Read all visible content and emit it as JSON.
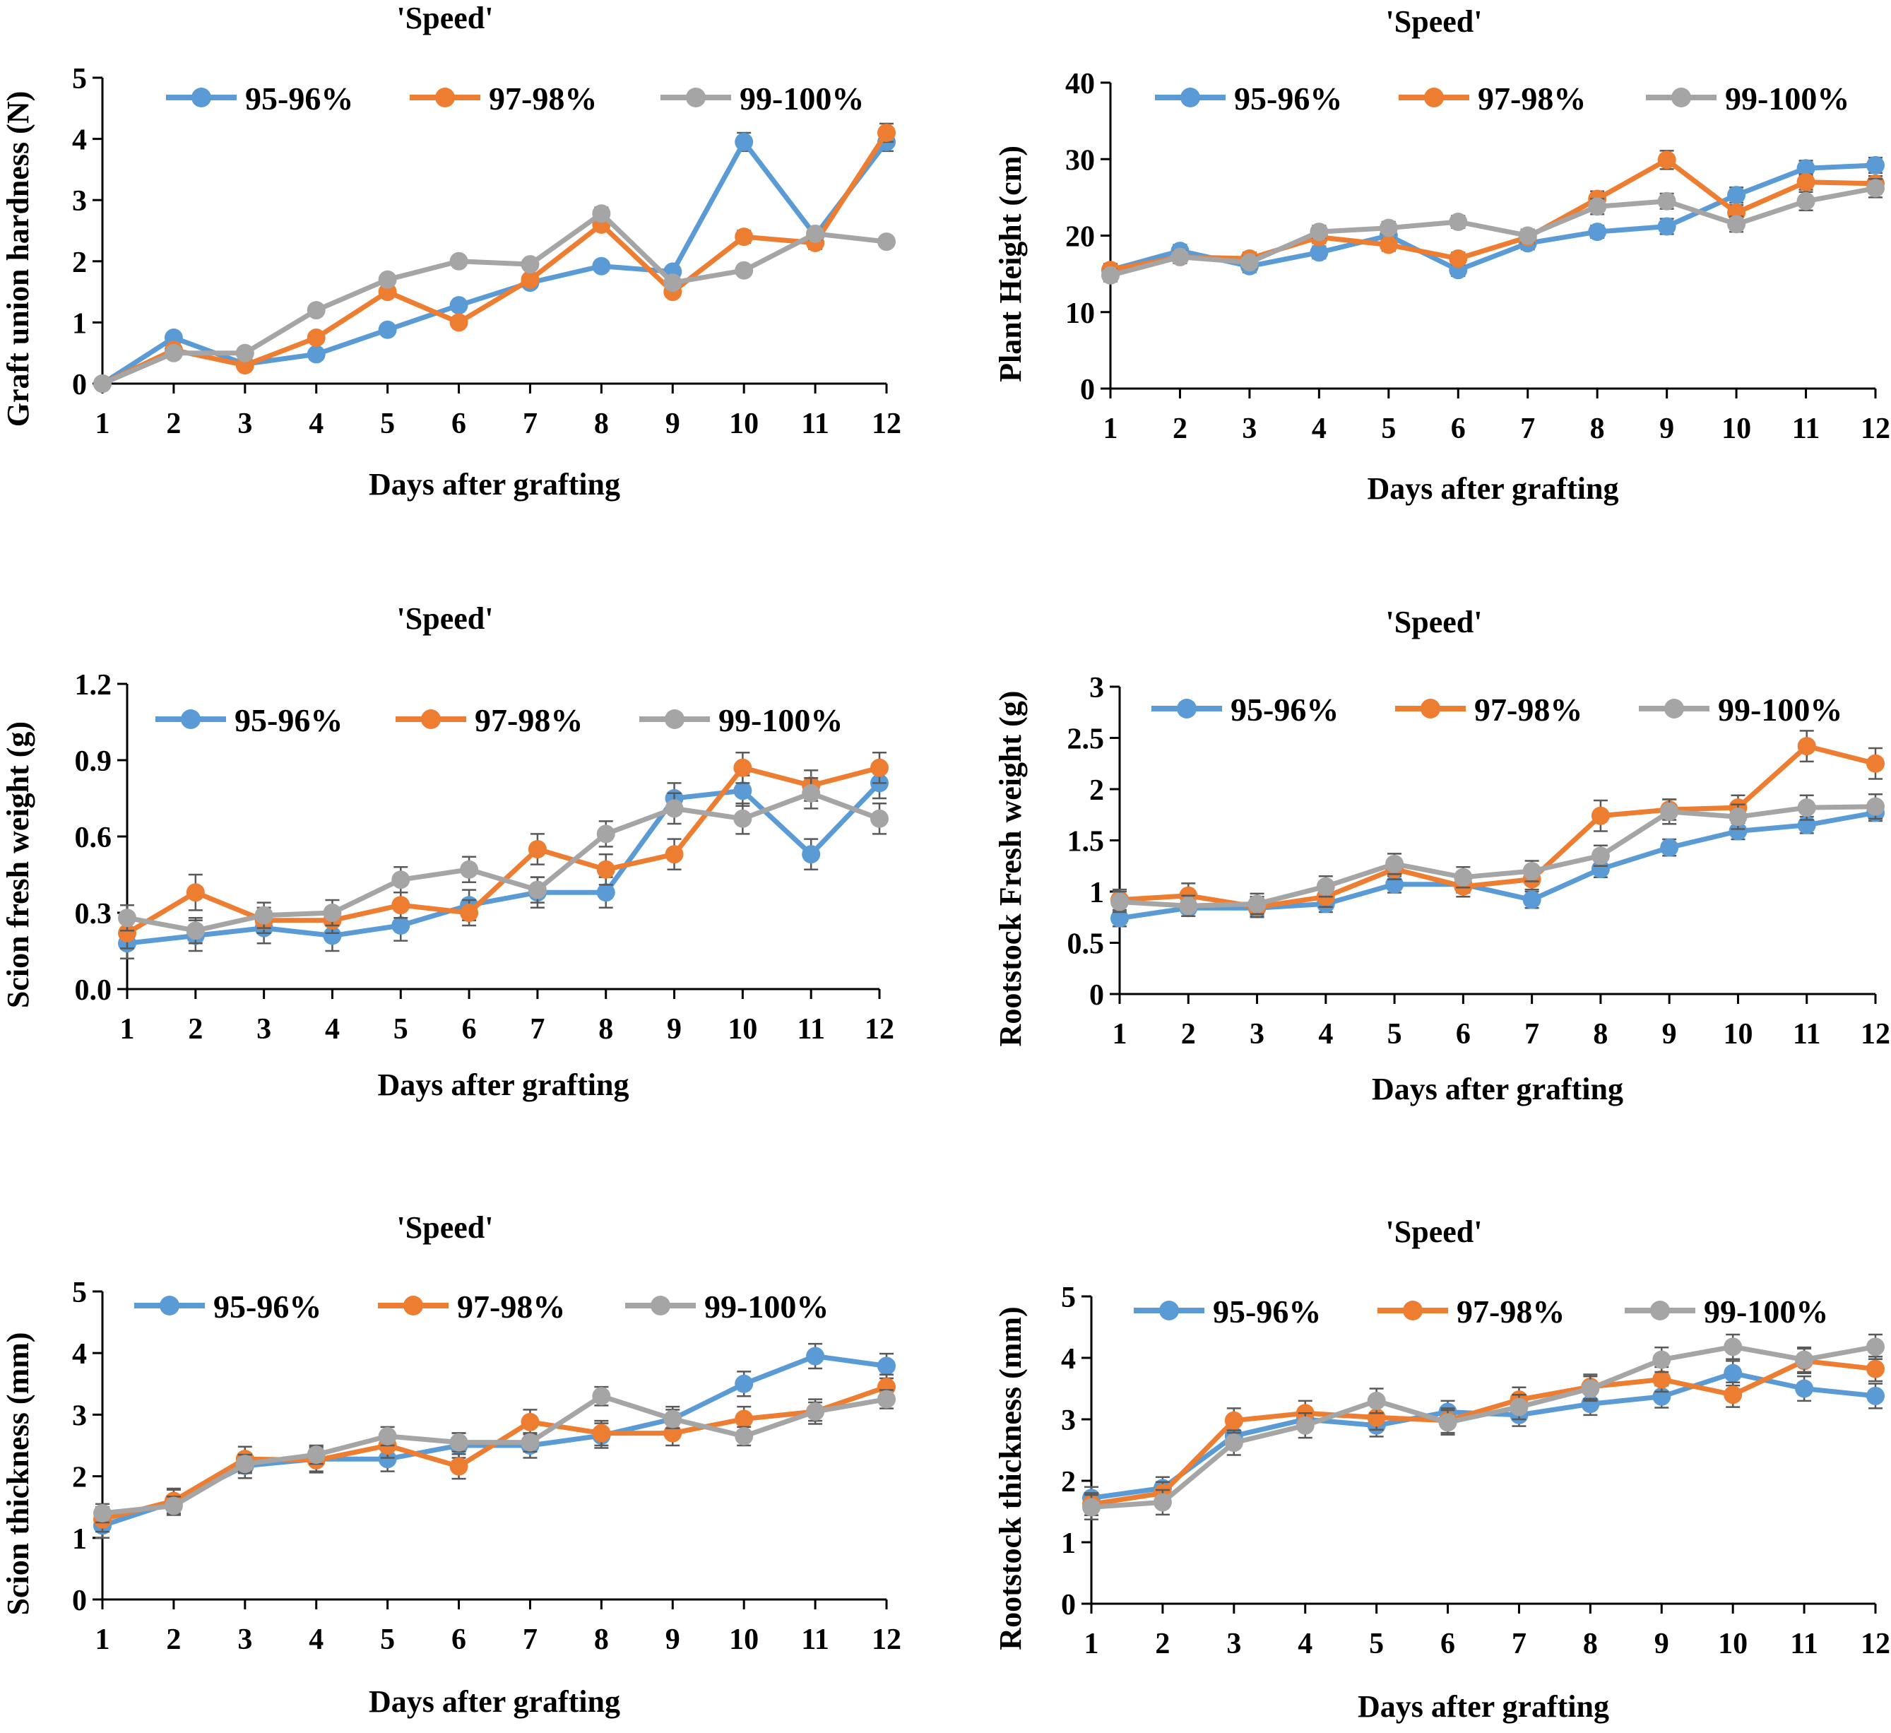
{
  "colors": {
    "95-96%": "#5B9BD5",
    "97-98%": "#ED7D31",
    "99-100%": "#A5A5A5",
    "error_bar": "#595959",
    "axis": "#000000"
  },
  "chart_data": [
    {
      "type": "line",
      "title": "'Speed'",
      "xlabel": "Days after grafting",
      "ylabel": "Graft union hardness (N)",
      "x": [
        1,
        2,
        3,
        4,
        5,
        6,
        7,
        8,
        9,
        10,
        11,
        12
      ],
      "ylim": [
        0,
        5
      ],
      "yticks": [
        "0",
        "1",
        "2",
        "3",
        "4",
        "5"
      ],
      "grid": false,
      "legend": "top",
      "series": [
        {
          "name": "95-96%",
          "values": [
            0,
            0.75,
            0.32,
            0.48,
            0.88,
            1.28,
            1.65,
            1.92,
            1.83,
            3.95,
            2.42,
            3.95
          ],
          "err": [
            0,
            0.05,
            0.05,
            0.05,
            0.05,
            0.05,
            0.05,
            0.05,
            0.05,
            0.15,
            0.1,
            0.15
          ]
        },
        {
          "name": "97-98%",
          "values": [
            0,
            0.55,
            0.3,
            0.75,
            1.5,
            1.0,
            1.7,
            2.6,
            1.5,
            2.4,
            2.3,
            4.1
          ],
          "err": [
            0,
            0.05,
            0.05,
            0.05,
            0.05,
            0.05,
            0.05,
            0.1,
            0.05,
            0.1,
            0.1,
            0.15
          ]
        },
        {
          "name": "99-100%",
          "values": [
            0,
            0.5,
            0.5,
            1.2,
            1.7,
            2.0,
            1.95,
            2.78,
            1.65,
            1.85,
            2.45,
            2.32
          ],
          "err": [
            0,
            0.05,
            0.05,
            0.05,
            0.05,
            0.05,
            0.05,
            0.1,
            0.05,
            0.05,
            0.1,
            0.05
          ]
        }
      ]
    },
    {
      "type": "line",
      "title": "'Speed'",
      "xlabel": "Days after grafting",
      "ylabel": "Plant Height (cm)",
      "x": [
        1,
        2,
        3,
        4,
        5,
        6,
        7,
        8,
        9,
        10,
        11,
        12
      ],
      "ylim": [
        0,
        40
      ],
      "yticks": [
        "0",
        "10",
        "20",
        "30",
        "40"
      ],
      "grid": false,
      "legend": "top",
      "series": [
        {
          "name": "95-96%",
          "values": [
            15.5,
            18,
            16,
            17.8,
            20,
            15.5,
            19,
            20.5,
            21.2,
            25.3,
            28.8,
            29.2
          ],
          "err": [
            0.8,
            0.8,
            0.8,
            0.8,
            0.8,
            0.8,
            0.8,
            0.8,
            1,
            1,
            1,
            1
          ]
        },
        {
          "name": "97-98%",
          "values": [
            15.5,
            17.2,
            17,
            19.8,
            18.8,
            17,
            19.8,
            24.8,
            29.9,
            23,
            27,
            26.8
          ],
          "err": [
            0.8,
            0.8,
            0.8,
            0.8,
            0.8,
            0.8,
            0.8,
            1,
            1.2,
            1,
            1,
            1
          ]
        },
        {
          "name": "99-100%",
          "values": [
            14.8,
            17.2,
            16.5,
            20.5,
            21,
            21.8,
            20,
            23.8,
            24.5,
            21.5,
            24.5,
            26.2
          ],
          "err": [
            0.8,
            0.8,
            0.8,
            0.8,
            0.8,
            0.8,
            0.8,
            1,
            1,
            1,
            1.2,
            1.2
          ]
        }
      ]
    },
    {
      "type": "line",
      "title": "'Speed'",
      "xlabel": "Days after grafting",
      "ylabel": "Scion fresh weight (g)",
      "x": [
        1,
        2,
        3,
        4,
        5,
        6,
        7,
        8,
        9,
        10,
        11,
        12
      ],
      "ylim": [
        0,
        1.2
      ],
      "yticks": [
        "0.0",
        "0.3",
        "0.6",
        "0.9",
        "1.2"
      ],
      "grid": false,
      "legend": "top",
      "series": [
        {
          "name": "95-96%",
          "values": [
            0.18,
            0.21,
            0.24,
            0.21,
            0.25,
            0.33,
            0.38,
            0.38,
            0.75,
            0.78,
            0.53,
            0.81
          ],
          "err": [
            0.06,
            0.06,
            0.06,
            0.06,
            0.06,
            0.06,
            0.06,
            0.06,
            0.06,
            0.06,
            0.06,
            0.06
          ]
        },
        {
          "name": "97-98%",
          "values": [
            0.22,
            0.38,
            0.27,
            0.27,
            0.33,
            0.3,
            0.55,
            0.47,
            0.53,
            0.87,
            0.8,
            0.87
          ],
          "err": [
            0.06,
            0.07,
            0.05,
            0.05,
            0.05,
            0.05,
            0.06,
            0.06,
            0.06,
            0.06,
            0.06,
            0.06
          ]
        },
        {
          "name": "99-100%",
          "values": [
            0.28,
            0.23,
            0.29,
            0.3,
            0.43,
            0.47,
            0.39,
            0.61,
            0.71,
            0.67,
            0.77,
            0.67
          ],
          "err": [
            0.05,
            0.05,
            0.05,
            0.05,
            0.05,
            0.05,
            0.05,
            0.05,
            0.06,
            0.06,
            0.06,
            0.06
          ]
        }
      ]
    },
    {
      "type": "line",
      "title": "'Speed'",
      "xlabel": "Days after grafting",
      "ylabel": "Rootstock Fresh weight (g)",
      "x": [
        1,
        2,
        3,
        4,
        5,
        6,
        7,
        8,
        9,
        10,
        11,
        12
      ],
      "ylim": [
        0,
        3
      ],
      "yticks": [
        "0",
        "0.5",
        "1",
        "1.5",
        "2",
        "2.5",
        "3"
      ],
      "grid": false,
      "legend": "top",
      "series": [
        {
          "name": "95-96%",
          "values": [
            0.74,
            0.84,
            0.84,
            0.88,
            1.07,
            1.07,
            0.92,
            1.22,
            1.43,
            1.59,
            1.65,
            1.77
          ],
          "err": [
            0.08,
            0.08,
            0.08,
            0.08,
            0.08,
            0.08,
            0.08,
            0.08,
            0.08,
            0.08,
            0.08,
            0.08
          ]
        },
        {
          "name": "97-98%",
          "values": [
            0.92,
            0.96,
            0.85,
            0.95,
            1.22,
            1.05,
            1.12,
            1.74,
            1.8,
            1.82,
            2.42,
            2.25
          ],
          "err": [
            0.1,
            0.12,
            0.1,
            0.1,
            0.1,
            0.1,
            0.1,
            0.15,
            0.1,
            0.12,
            0.15,
            0.15
          ]
        },
        {
          "name": "99-100%",
          "values": [
            0.9,
            0.86,
            0.88,
            1.05,
            1.27,
            1.14,
            1.2,
            1.35,
            1.78,
            1.73,
            1.82,
            1.83
          ],
          "err": [
            0.1,
            0.1,
            0.1,
            0.1,
            0.1,
            0.1,
            0.1,
            0.1,
            0.12,
            0.12,
            0.12,
            0.12
          ]
        }
      ]
    },
    {
      "type": "line",
      "title": "'Speed'",
      "xlabel": "Days after grafting",
      "ylabel": "Scion thickness (mm)",
      "x": [
        1,
        2,
        3,
        4,
        5,
        6,
        7,
        8,
        9,
        10,
        11,
        12
      ],
      "ylim": [
        0,
        5
      ],
      "yticks": [
        "0",
        "1",
        "2",
        "3",
        "4",
        "5"
      ],
      "grid": false,
      "legend": "top",
      "series": [
        {
          "name": "95-96%",
          "values": [
            1.2,
            1.58,
            2.17,
            2.28,
            2.28,
            2.5,
            2.5,
            2.66,
            2.93,
            3.5,
            3.95,
            3.79
          ],
          "err": [
            0.2,
            0.2,
            0.2,
            0.2,
            0.2,
            0.2,
            0.2,
            0.2,
            0.2,
            0.2,
            0.2,
            0.2
          ]
        },
        {
          "name": "97-98%",
          "values": [
            1.3,
            1.6,
            2.28,
            2.26,
            2.5,
            2.16,
            2.88,
            2.7,
            2.7,
            2.93,
            3.05,
            3.45
          ],
          "err": [
            0.2,
            0.2,
            0.2,
            0.2,
            0.2,
            0.2,
            0.2,
            0.2,
            0.2,
            0.2,
            0.2,
            0.2
          ]
        },
        {
          "name": "99-100%",
          "values": [
            1.4,
            1.52,
            2.2,
            2.35,
            2.65,
            2.55,
            2.55,
            3.3,
            2.93,
            2.65,
            3.05,
            3.25
          ],
          "err": [
            0.15,
            0.15,
            0.15,
            0.15,
            0.15,
            0.15,
            0.15,
            0.15,
            0.15,
            0.15,
            0.15,
            0.15
          ]
        }
      ]
    },
    {
      "type": "line",
      "title": "'Speed'",
      "xlabel": "Days after grafting",
      "ylabel": "Rootstock thickness (mm)",
      "x": [
        1,
        2,
        3,
        4,
        5,
        6,
        7,
        8,
        9,
        10,
        11,
        12
      ],
      "ylim": [
        0,
        5
      ],
      "yticks": [
        "0",
        "1",
        "2",
        "3",
        "4",
        "5"
      ],
      "grid": false,
      "legend": "top",
      "series": [
        {
          "name": "95-96%",
          "values": [
            1.72,
            1.88,
            2.73,
            3.0,
            2.9,
            3.12,
            3.07,
            3.25,
            3.37,
            3.75,
            3.5,
            3.38
          ],
          "err": [
            0.18,
            0.18,
            0.18,
            0.18,
            0.18,
            0.18,
            0.18,
            0.18,
            0.18,
            0.2,
            0.2,
            0.2
          ]
        },
        {
          "name": "97-98%",
          "values": [
            1.62,
            1.8,
            2.98,
            3.1,
            3.03,
            2.98,
            3.32,
            3.53,
            3.65,
            3.4,
            3.95,
            3.82
          ],
          "err": [
            0.18,
            0.18,
            0.2,
            0.2,
            0.2,
            0.2,
            0.2,
            0.2,
            0.2,
            0.2,
            0.2,
            0.2
          ]
        },
        {
          "name": "99-100%",
          "values": [
            1.57,
            1.65,
            2.62,
            2.9,
            3.3,
            2.95,
            3.2,
            3.5,
            3.97,
            4.18,
            3.97,
            4.18
          ],
          "err": [
            0.2,
            0.2,
            0.2,
            0.2,
            0.2,
            0.2,
            0.2,
            0.2,
            0.2,
            0.2,
            0.2,
            0.2
          ]
        }
      ]
    }
  ]
}
